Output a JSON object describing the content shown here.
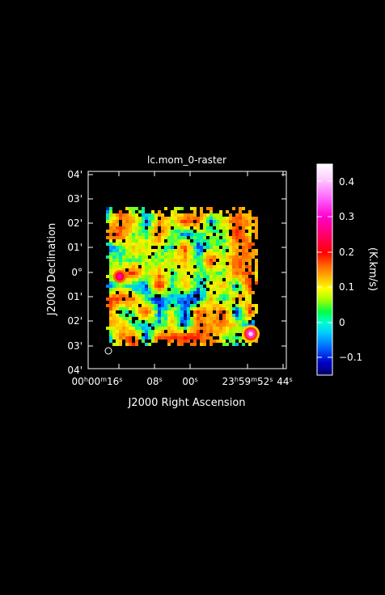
{
  "raster": {
    "title": "lc.mom_0-raster",
    "x_axis_label": "J2000 Right Ascension",
    "y_axis_label": "J2000 Declination",
    "x_ticks": [
      {
        "label_html": "00<tspan baseline-shift=\"super\" font-size=\"8\">h</tspan>00<tspan baseline-shift=\"super\" font-size=\"8\">m</tspan>16<tspan baseline-shift=\"super\" font-size=\"8\">s</tspan>"
      },
      {
        "label_html": "08<tspan baseline-shift=\"super\" font-size=\"8\">s</tspan>"
      },
      {
        "label_html": "00<tspan baseline-shift=\"super\" font-size=\"8\">s</tspan>"
      },
      {
        "label_html": "23<tspan baseline-shift=\"super\" font-size=\"8\">h</tspan>59<tspan baseline-shift=\"super\" font-size=\"8\">m</tspan>52<tspan baseline-shift=\"super\" font-size=\"8\">s</tspan>"
      },
      {
        "label_html": "44<tspan baseline-shift=\"super\" font-size=\"8\">s</tspan>"
      }
    ],
    "y_ticks": [
      "04'",
      "03'",
      "02'",
      "01'",
      "0°",
      "01'",
      "02'",
      "03'",
      "04'"
    ],
    "colorbar": {
      "unit": "(K.km/s)",
      "ticks": [
        "0.4",
        "0.3",
        "0.2",
        "0.1",
        "0",
        "−0.1"
      ],
      "range": [
        -0.15,
        0.44
      ]
    }
  }
}
